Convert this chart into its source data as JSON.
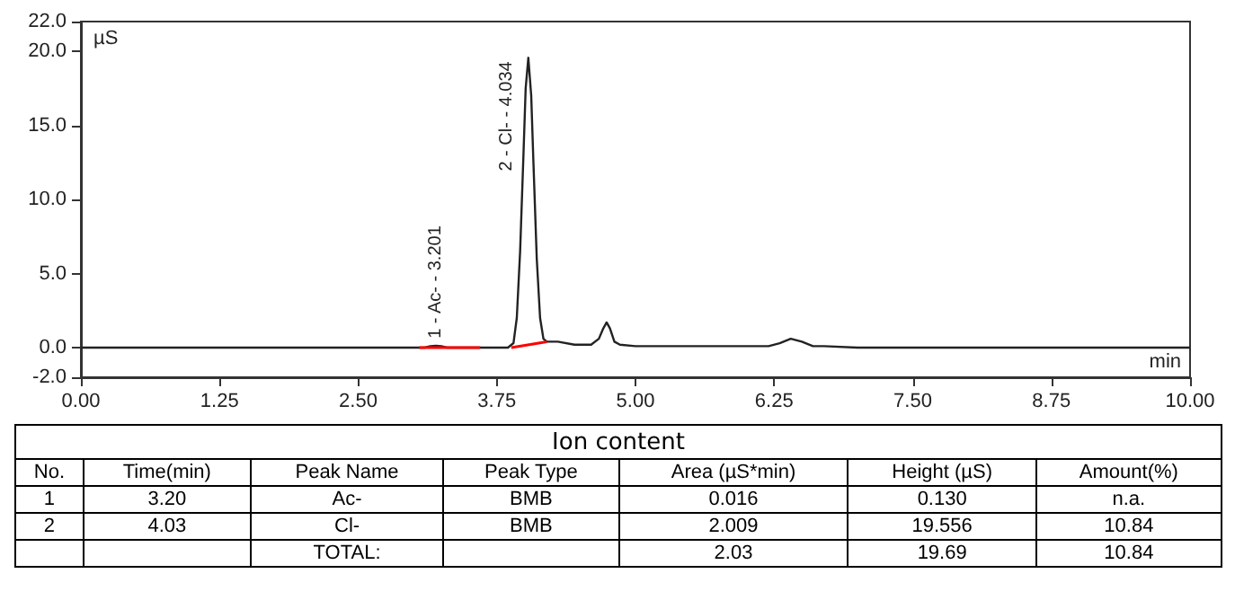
{
  "chart_data": {
    "type": "line",
    "xlabel": "min",
    "ylabel": "µS",
    "xlim": [
      0,
      10
    ],
    "ylim": [
      -2,
      22
    ],
    "xticks": [
      {
        "value": 0,
        "label": "0.00"
      },
      {
        "value": 1.25,
        "label": "1.25"
      },
      {
        "value": 2.5,
        "label": "2.50"
      },
      {
        "value": 3.75,
        "label": "3.75"
      },
      {
        "value": 5,
        "label": "5.00"
      },
      {
        "value": 6.25,
        "label": "6.25"
      },
      {
        "value": 7.5,
        "label": "7.50"
      },
      {
        "value": 8.75,
        "label": "8.75"
      },
      {
        "value": 10,
        "label": "10.00"
      }
    ],
    "yticks": [
      {
        "value": -2,
        "label": "-2.0"
      },
      {
        "value": 0,
        "label": "0.0"
      },
      {
        "value": 5,
        "label": "5.0"
      },
      {
        "value": 10,
        "label": "10.0"
      },
      {
        "value": 15,
        "label": "15.0"
      },
      {
        "value": 20,
        "label": "20.0"
      },
      {
        "value": 22,
        "label": "22.0"
      }
    ],
    "grid": false,
    "marker": "none",
    "line_style": "solid",
    "series": [
      {
        "color": "#222222",
        "x": [
          0,
          1,
          2,
          3,
          3.1,
          3.15,
          3.2,
          3.25,
          3.3,
          3.5,
          3.7,
          3.85,
          3.9,
          3.93,
          3.96,
          3.99,
          4.01,
          4.034,
          4.06,
          4.08,
          4.11,
          4.14,
          4.17,
          4.2,
          4.3,
          4.45,
          4.6,
          4.67,
          4.71,
          4.74,
          4.77,
          4.81,
          4.86,
          5,
          5.5,
          6,
          6.2,
          6.3,
          6.4,
          6.5,
          6.6,
          6.7,
          7,
          8,
          9,
          10
        ],
        "values": [
          0,
          0,
          0,
          0,
          0,
          0.1,
          0.13,
          0.1,
          0,
          0,
          0,
          0,
          0.3,
          2,
          6.5,
          13,
          17.5,
          19.556,
          17,
          12.5,
          6,
          2,
          0.6,
          0.4,
          0.4,
          0.2,
          0.2,
          0.6,
          1.3,
          1.7,
          1.3,
          0.4,
          0.2,
          0.1,
          0.1,
          0.1,
          0.1,
          0.3,
          0.6,
          0.4,
          0.1,
          0.1,
          0,
          0,
          0,
          0
        ]
      },
      {
        "color": "#ff0000",
        "x": [
          3.05,
          3.6
        ],
        "values": [
          0,
          0
        ]
      },
      {
        "color": "#ff0000",
        "x": [
          3.88,
          4.2
        ],
        "values": [
          0,
          0.4
        ]
      }
    ],
    "annotations": [
      {
        "text": "1 - Ac- - 3.201",
        "x": 3.201,
        "y": 0.13
      },
      {
        "text": "2 - Cl- - 4.034",
        "x": 4.034,
        "y": 19.556
      },
      "Ion content",
      "No.",
      "Time(min)",
      "Peak Name",
      "Peak Type",
      "Area (µS*min)",
      "Height (µS)",
      "Amount(%)",
      "1",
      "3.20",
      "Ac-",
      "BMB",
      "0.016",
      "0.130",
      "n.a.",
      "2",
      "4.03",
      "Cl-",
      "BMB",
      "2.009",
      "19.556",
      "10.84",
      null,
      null,
      "TOTAL:",
      null,
      "2.03",
      "19.69",
      "10.84"
    ]
  }
}
